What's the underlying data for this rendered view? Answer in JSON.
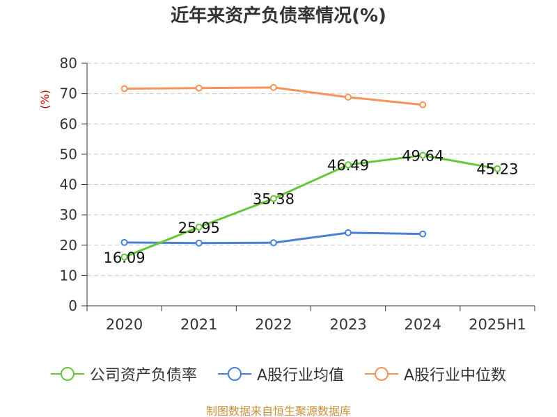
{
  "chart_data": {
    "type": "line",
    "title": "近年来资产负债率情况(%)",
    "ylabel": "(%)",
    "xlabel": "",
    "categories": [
      "2020",
      "2021",
      "2022",
      "2023",
      "2024",
      "2025H1"
    ],
    "ylim": [
      0,
      80
    ],
    "yticks": [
      0,
      10,
      20,
      30,
      40,
      50,
      60,
      70,
      80
    ],
    "grid": true,
    "legend_position": "bottom",
    "series": [
      {
        "name": "公司资产负债率",
        "color": "#66c53a",
        "values": [
          16.09,
          25.95,
          35.38,
          46.49,
          49.64,
          45.23
        ],
        "labels": [
          "16.09",
          "25.95",
          "35.38",
          "46.49",
          "49.64",
          "45.23"
        ]
      },
      {
        "name": "A股行业均值",
        "color": "#4a7fd6",
        "values": [
          20.9,
          20.7,
          20.8,
          24.1,
          23.7,
          null
        ]
      },
      {
        "name": "A股行业中位数",
        "color": "#f5935a",
        "values": [
          71.6,
          71.8,
          72.0,
          68.8,
          66.3,
          null
        ]
      }
    ]
  },
  "source": "制图数据来自恒生聚源数据库"
}
